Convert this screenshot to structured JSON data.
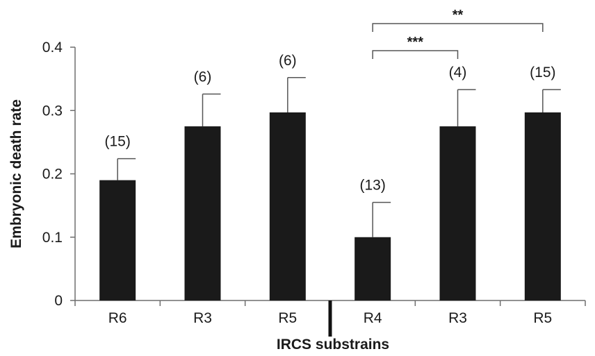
{
  "chart_data": {
    "type": "bar",
    "title": "",
    "xlabel": "IRCS substrains",
    "ylabel": "Embryonic death rate",
    "ylim": [
      0,
      0.4
    ],
    "yticks": [
      "0",
      "0.1",
      "0.2",
      "0.3",
      "0.4"
    ],
    "categories": [
      "R6",
      "R3",
      "R5",
      "R4",
      "R3",
      "R5"
    ],
    "values": [
      0.19,
      0.275,
      0.297,
      0.1,
      0.275,
      0.297
    ],
    "errors": [
      0.034,
      0.051,
      0.055,
      0.055,
      0.058,
      0.036
    ],
    "n_labels": [
      "(15)",
      "(6)",
      "(6)",
      "(13)",
      "(4)",
      "(15)"
    ],
    "group_separator_after_index": 2,
    "bar_color": "#1a1a1a",
    "grid": false,
    "significance": [
      {
        "from_index": 3,
        "to_index": 4,
        "label": "***"
      },
      {
        "from_index": 3,
        "to_index": 5,
        "label": "**"
      }
    ]
  }
}
